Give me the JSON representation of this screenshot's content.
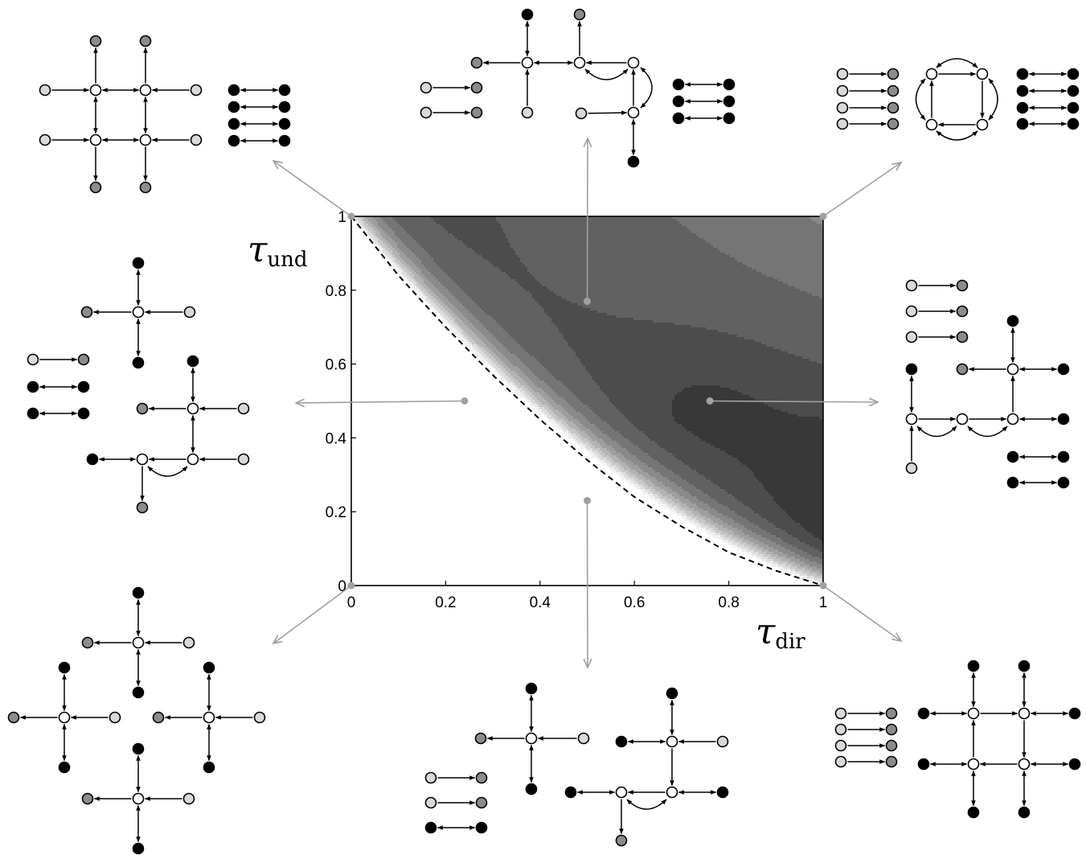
{
  "chart_data": {
    "type": "heatmap",
    "title": "",
    "xlabel": "τ",
    "xlabel_sub": "dir",
    "ylabel": "τ",
    "ylabel_sub": "und",
    "xlim": [
      0,
      1
    ],
    "ylim": [
      0,
      1
    ],
    "xticks": [
      "0",
      "0.2",
      "0.4",
      "0.6",
      "0.8",
      "1"
    ],
    "yticks": [
      "0",
      "0.2",
      "0.4",
      "0.6",
      "0.8",
      "1"
    ],
    "grid": false,
    "colormap": "gray (white = low, black = high)",
    "boundary_curve_style": "dashed",
    "boundary_curve": [
      [
        0,
        1
      ],
      [
        0.1,
        0.84
      ],
      [
        0.2,
        0.7
      ],
      [
        0.3,
        0.57
      ],
      [
        0.4,
        0.45
      ],
      [
        0.5,
        0.34
      ],
      [
        0.6,
        0.24
      ],
      [
        0.7,
        0.16
      ],
      [
        0.8,
        0.09
      ],
      [
        0.9,
        0.04
      ],
      [
        1,
        0
      ]
    ],
    "sample_points": [
      {
        "x": 0,
        "y": 1
      },
      {
        "x": 0.5,
        "y": 0.77
      },
      {
        "x": 1,
        "y": 1
      },
      {
        "x": 0.24,
        "y": 0.5
      },
      {
        "x": 0.76,
        "y": 0.5
      },
      {
        "x": 0.5,
        "y": 0.23
      },
      {
        "x": 0,
        "y": 0
      },
      {
        "x": 1,
        "y": 0
      }
    ]
  },
  "colors": {
    "node_white": "#ffffff",
    "node_light": "#d9d9d9",
    "node_gray": "#8c8c8c",
    "node_black": "#000000",
    "pointer": "#a0a0a0"
  }
}
